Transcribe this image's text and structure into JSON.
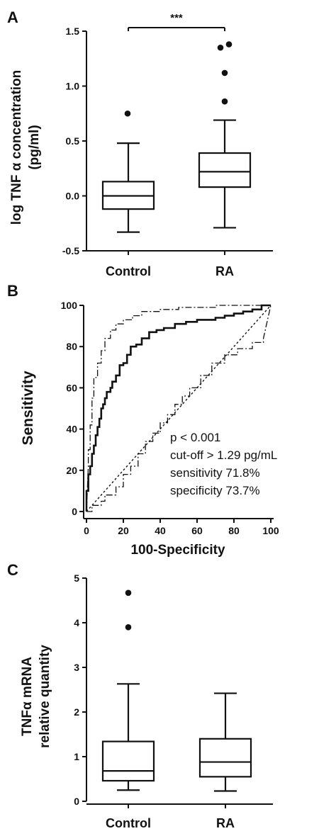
{
  "chart_data": [
    {
      "panel": "A",
      "type": "box",
      "categories": [
        "Control",
        "RA"
      ],
      "ylabel_lines": [
        "log TNF α concentration",
        "(pg/ml)"
      ],
      "ylim": [
        -0.5,
        1.5
      ],
      "yticks": [
        -0.5,
        0.0,
        0.5,
        1.0,
        1.5
      ],
      "ytick_labels": [
        "-0.5",
        "0.0",
        "0.5",
        "1.0",
        "1.5"
      ],
      "boxes": [
        {
          "category": "Control",
          "min": -0.33,
          "q1": -0.12,
          "median": 0.0,
          "q3": 0.13,
          "max": 0.48,
          "outliers": [
            0.75
          ]
        },
        {
          "category": "RA",
          "min": -0.29,
          "q1": 0.08,
          "median": 0.22,
          "q3": 0.39,
          "max": 0.69,
          "outliers": [
            0.86,
            1.12,
            1.35,
            1.38
          ]
        }
      ],
      "significance": {
        "label": "***",
        "between": [
          "Control",
          "RA"
        ]
      }
    },
    {
      "panel": "B",
      "type": "line",
      "xlabel": "100-Specificity",
      "ylabel": "Sensitivity",
      "xlim": [
        0,
        100
      ],
      "ylim": [
        0,
        100
      ],
      "xticks": [
        0,
        20,
        40,
        60,
        80,
        100
      ],
      "yticks": [
        0,
        20,
        40,
        60,
        80,
        100
      ],
      "series": [
        {
          "role": "roc",
          "style": "solid",
          "x": [
            0,
            0,
            1,
            1,
            2,
            2,
            3,
            3,
            4,
            4,
            5,
            5,
            6,
            6,
            7,
            7,
            8,
            8,
            9,
            9,
            10,
            10,
            11,
            11,
            13,
            13,
            14,
            14,
            16,
            16,
            18,
            18,
            20,
            20,
            22,
            22,
            24,
            24,
            27,
            27,
            30,
            30,
            34,
            34,
            38,
            38,
            42,
            42,
            48,
            48,
            54,
            54,
            60,
            60,
            65,
            65,
            70,
            70,
            75,
            75,
            80,
            80,
            85,
            85,
            90,
            90,
            95,
            95,
            100
          ],
          "y": [
            0,
            10,
            10,
            18,
            18,
            22,
            22,
            28,
            28,
            32,
            32,
            37,
            37,
            41,
            41,
            45,
            45,
            50,
            50,
            52,
            52,
            55,
            55,
            58,
            58,
            60,
            60,
            63,
            63,
            66,
            66,
            71,
            71,
            72,
            72,
            76,
            76,
            80,
            80,
            81,
            81,
            84,
            84,
            87,
            87,
            88,
            88,
            89,
            89,
            91,
            91,
            92,
            92,
            93,
            93,
            93,
            93,
            94,
            94,
            95,
            95,
            96,
            96,
            97,
            97,
            98,
            98,
            100,
            100
          ]
        },
        {
          "role": "ci-upper",
          "style": "dashdot",
          "x": [
            0,
            1,
            1,
            2,
            2,
            3,
            3,
            4,
            4,
            6,
            6,
            8,
            8,
            10,
            10,
            13,
            13,
            16,
            16,
            20,
            20,
            25,
            25,
            30,
            30,
            40,
            40,
            50,
            50,
            60,
            60,
            70,
            70,
            80,
            80,
            90,
            90,
            100
          ],
          "y": [
            0,
            22,
            30,
            30,
            42,
            42,
            55,
            55,
            65,
            65,
            72,
            72,
            78,
            78,
            84,
            84,
            88,
            88,
            91,
            91,
            93,
            93,
            95,
            95,
            97,
            97,
            98,
            98,
            99,
            99,
            99,
            99,
            100,
            100,
            100,
            100,
            100,
            100
          ]
        },
        {
          "role": "ci-lower",
          "style": "dashdot",
          "x": [
            0,
            3,
            3,
            8,
            8,
            10,
            10,
            16,
            16,
            20,
            20,
            24,
            24,
            28,
            28,
            32,
            32,
            36,
            36,
            40,
            40,
            44,
            44,
            48,
            48,
            52,
            52,
            56,
            56,
            62,
            62,
            68,
            68,
            75,
            75,
            82,
            82,
            90,
            90,
            96,
            96,
            100
          ],
          "y": [
            0,
            0,
            3,
            3,
            5,
            5,
            8,
            8,
            12,
            12,
            18,
            18,
            22,
            22,
            28,
            28,
            34,
            34,
            38,
            38,
            43,
            43,
            47,
            47,
            52,
            52,
            56,
            56,
            60,
            60,
            66,
            66,
            72,
            72,
            76,
            76,
            79,
            79,
            82,
            82,
            84,
            100
          ]
        },
        {
          "role": "reference",
          "style": "dotted",
          "x": [
            0,
            100
          ],
          "y": [
            0,
            100
          ]
        }
      ],
      "annotation_lines": [
        "p < 0.001",
        "cut-off > 1.29 pg/mL",
        "sensitivity 71.8%",
        "specificity 73.7%"
      ]
    },
    {
      "panel": "C",
      "type": "box",
      "categories": [
        "Control",
        "RA"
      ],
      "ylabel_lines": [
        "TNFα  mRNA",
        "relative quantity"
      ],
      "ylim": [
        0,
        5
      ],
      "yticks": [
        0,
        1,
        2,
        3,
        4,
        5
      ],
      "ytick_labels": [
        "0",
        "1",
        "2",
        "3",
        "4",
        "5"
      ],
      "boxes": [
        {
          "category": "Control",
          "min": 0.25,
          "q1": 0.46,
          "median": 0.68,
          "q3": 1.34,
          "max": 2.63,
          "outliers": [
            3.9,
            4.67
          ]
        },
        {
          "category": "RA",
          "min": 0.23,
          "q1": 0.55,
          "median": 0.88,
          "q3": 1.4,
          "max": 2.42,
          "outliers": []
        }
      ]
    }
  ]
}
